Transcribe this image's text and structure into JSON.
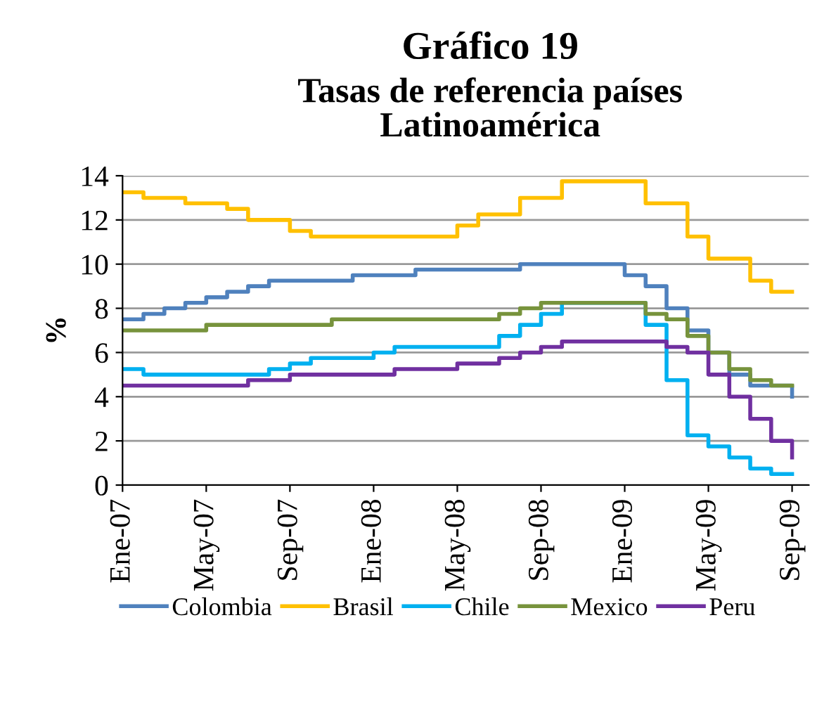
{
  "chart_data": {
    "type": "step",
    "title": "Gráfico 19",
    "subtitle": "Tasas de referencia países\nLatinoamérica",
    "ylabel": "%",
    "categories": [
      "Ene-07",
      null,
      null,
      null,
      "May-07",
      null,
      null,
      null,
      "Sep-07",
      null,
      null,
      null,
      "Ene-08",
      null,
      null,
      null,
      "May-08",
      null,
      null,
      null,
      "Sep-08",
      null,
      null,
      null,
      "Ene-09",
      null,
      null,
      null,
      "May-09",
      null,
      null,
      null,
      "Sep-09"
    ],
    "series": [
      {
        "name": "Colombia",
        "color": "#4f81bd",
        "values": [
          7.5,
          7.75,
          8.0,
          8.25,
          8.5,
          8.75,
          9.0,
          9.25,
          9.25,
          9.25,
          9.25,
          9.5,
          9.5,
          9.5,
          9.75,
          9.75,
          9.75,
          9.75,
          9.75,
          10,
          10,
          10,
          10,
          10,
          9.5,
          9.0,
          8.0,
          7.0,
          6.0,
          5.0,
          4.5,
          4.5,
          4.0
        ]
      },
      {
        "name": "Brasil",
        "color": "#ffc000",
        "values": [
          13.25,
          13.0,
          13.0,
          12.75,
          12.75,
          12.5,
          12.0,
          12.0,
          11.5,
          11.25,
          11.25,
          11.25,
          11.25,
          11.25,
          11.25,
          11.25,
          11.75,
          12.25,
          12.25,
          13.0,
          13.0,
          13.75,
          13.75,
          13.75,
          13.75,
          12.75,
          12.75,
          11.25,
          10.25,
          10.25,
          9.25,
          8.75,
          8.75
        ]
      },
      {
        "name": "Chile",
        "color": "#00b0f0",
        "values": [
          5.25,
          5.0,
          5.0,
          5.0,
          5.0,
          5.0,
          5.0,
          5.25,
          5.5,
          5.75,
          5.75,
          5.75,
          6.0,
          6.25,
          6.25,
          6.25,
          6.25,
          6.25,
          6.75,
          7.25,
          7.75,
          8.25,
          8.25,
          8.25,
          8.25,
          7.25,
          4.75,
          2.25,
          1.75,
          1.25,
          0.75,
          0.5,
          0.5
        ]
      },
      {
        "name": "Mexico",
        "color": "#77933c",
        "values": [
          7.0,
          7.0,
          7.0,
          7.0,
          7.25,
          7.25,
          7.25,
          7.25,
          7.25,
          7.25,
          7.5,
          7.5,
          7.5,
          7.5,
          7.5,
          7.5,
          7.5,
          7.5,
          7.75,
          8.0,
          8.25,
          8.25,
          8.25,
          8.25,
          8.25,
          7.75,
          7.5,
          6.75,
          6.0,
          5.25,
          4.75,
          4.5,
          4.5
        ]
      },
      {
        "name": "Peru",
        "color": "#7030a0",
        "values": [
          4.5,
          4.5,
          4.5,
          4.5,
          4.5,
          4.5,
          4.75,
          4.75,
          5.0,
          5.0,
          5.0,
          5.0,
          5.0,
          5.25,
          5.25,
          5.25,
          5.5,
          5.5,
          5.75,
          6.0,
          6.25,
          6.5,
          6.5,
          6.5,
          6.5,
          6.5,
          6.25,
          6.0,
          5.0,
          4.0,
          3.0,
          2.0,
          1.25
        ]
      }
    ],
    "ylim": [
      0,
      14
    ],
    "yticks": [
      0,
      2,
      4,
      6,
      8,
      10,
      12,
      14
    ],
    "grid": "y",
    "legend": "bottom",
    "line_style": "solid",
    "marker": "none"
  }
}
